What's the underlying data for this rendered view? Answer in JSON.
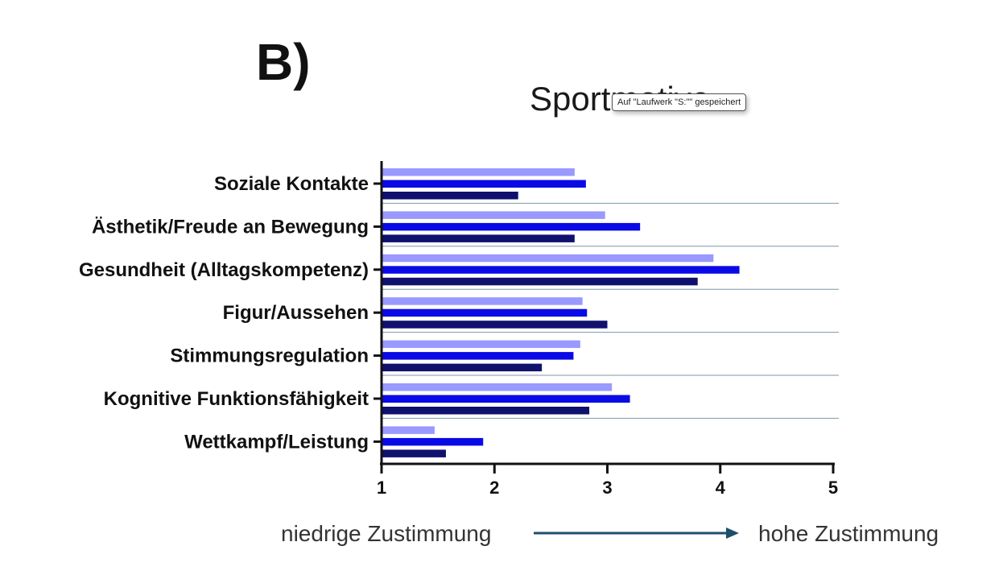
{
  "panel_label": "B)",
  "tooltip": "Auf \"Laufwerk \"S:\"\" gespeichert",
  "scale": {
    "low_label": "niedrige Zustimmung",
    "high_label": "hohe Zustimmung"
  },
  "colors": {
    "series": [
      "#9999ff",
      "#0a0ae6",
      "#10106e"
    ],
    "separator": "#7a98a8",
    "arrow": "#1f4e6b"
  },
  "chart_data": {
    "type": "bar",
    "orientation": "horizontal",
    "title": "Sportmotive",
    "categories": [
      "Soziale Kontakte",
      "Ästhetik/Freude an Bewegung",
      "Gesundheit (Alltagskompetenz)",
      "Figur/Aussehen",
      "Stimmungsregulation",
      "Kognitive Funktionsfähigkeit",
      "Wettkampf/Leistung"
    ],
    "series": [
      {
        "values": [
          2.71,
          2.98,
          3.94,
          2.78,
          2.76,
          3.04,
          1.47
        ]
      },
      {
        "values": [
          2.81,
          3.29,
          4.17,
          2.82,
          2.7,
          3.2,
          1.9
        ]
      },
      {
        "values": [
          2.21,
          2.71,
          3.8,
          3.0,
          2.42,
          2.84,
          1.57
        ]
      }
    ],
    "xlim": [
      1,
      5
    ],
    "xticks": [
      "1",
      "2",
      "3",
      "4",
      "5"
    ],
    "grid": false,
    "legend": "none"
  }
}
